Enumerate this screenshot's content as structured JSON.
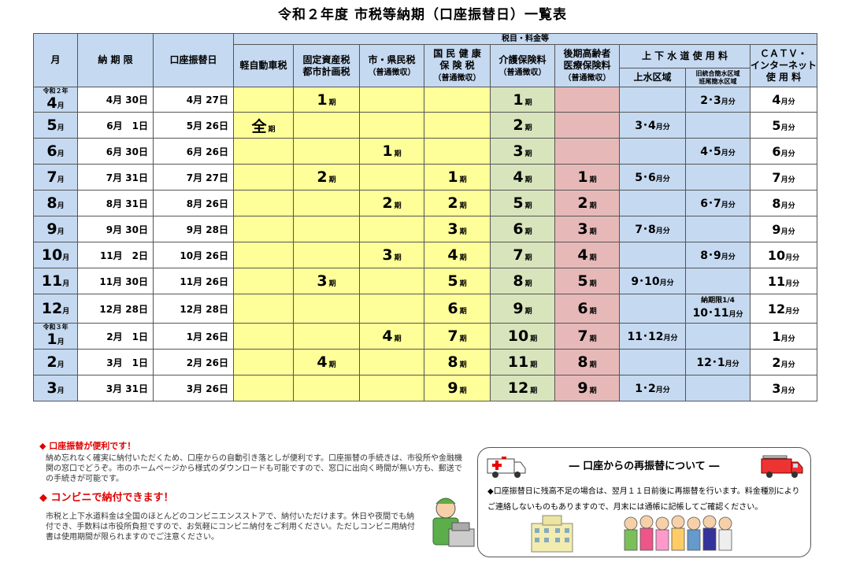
{
  "title": "令和２年度 市税等納期（口座振替日）一覧表",
  "header": {
    "month": "月",
    "due": "納 期 限",
    "transfer": "口座振替日",
    "group": "税目・料金等",
    "kei": "軽自動車税",
    "kotei1": "固定資産税",
    "kotei2": "都市計画税",
    "shiken1": "市・県民税",
    "shiken2": "（普通徴収）",
    "kokuho1": "国 民 健 康",
    "kokuho2": "保 険 税",
    "kokuho3": "（普通徴収）",
    "kaigo1": "介護保険料",
    "kaigo2": "（普通徴収）",
    "koki1": "後期高齢者",
    "koki2": "医療保険料",
    "koki3": "（普通徴収）",
    "water": "上 下 水 道 使 用 料",
    "water_a": "上水区域",
    "water_b1": "旧統合簡水区域",
    "water_b2": "班尾簡水区域",
    "catv1": "ＣＡＴＶ・",
    "catv2": "インターネット",
    "catv3": "使 用 料"
  },
  "month_suffix": "月",
  "ki_suffix": "期",
  "gappun_suffix": "月分",
  "rows": [
    {
      "era": "令和２年",
      "m": "4",
      "due": "4月 30日",
      "tr": "4月 27日",
      "kei": "",
      "kotei": "1",
      "shiken": "",
      "kokuho": "",
      "kaigo": "1",
      "koki": "",
      "wa": "",
      "wb": "2･3",
      "catv": "4"
    },
    {
      "era": "",
      "m": "5",
      "due": "6月　1日",
      "tr": "5月 26日",
      "kei": "全",
      "kotei": "",
      "shiken": "",
      "kokuho": "",
      "kaigo": "2",
      "koki": "",
      "wa": "3･4",
      "wb": "",
      "catv": "5"
    },
    {
      "era": "",
      "m": "6",
      "due": "6月 30日",
      "tr": "6月 26日",
      "kei": "",
      "kotei": "",
      "shiken": "1",
      "kokuho": "",
      "kaigo": "3",
      "koki": "",
      "wa": "",
      "wb": "4･5",
      "catv": "6"
    },
    {
      "era": "",
      "m": "7",
      "due": "7月 31日",
      "tr": "7月 27日",
      "kei": "",
      "kotei": "2",
      "shiken": "",
      "kokuho": "1",
      "kaigo": "4",
      "koki": "1",
      "wa": "5･6",
      "wb": "",
      "catv": "7"
    },
    {
      "era": "",
      "m": "8",
      "due": "8月 31日",
      "tr": "8月 26日",
      "kei": "",
      "kotei": "",
      "shiken": "2",
      "kokuho": "2",
      "kaigo": "5",
      "koki": "2",
      "wa": "",
      "wb": "6･7",
      "catv": "8"
    },
    {
      "era": "",
      "m": "9",
      "due": "9月 30日",
      "tr": "9月 28日",
      "kei": "",
      "kotei": "",
      "shiken": "",
      "kokuho": "3",
      "kaigo": "6",
      "koki": "3",
      "wa": "7･8",
      "wb": "",
      "catv": "9"
    },
    {
      "era": "",
      "m": "10",
      "due": "11月　2日",
      "tr": "10月 26日",
      "kei": "",
      "kotei": "",
      "shiken": "3",
      "kokuho": "4",
      "kaigo": "7",
      "koki": "4",
      "wa": "",
      "wb": "8･9",
      "catv": "10"
    },
    {
      "era": "",
      "m": "11",
      "due": "11月 30日",
      "tr": "11月 26日",
      "kei": "",
      "kotei": "3",
      "shiken": "",
      "kokuho": "5",
      "kaigo": "8",
      "koki": "5",
      "wa": "9･10",
      "wb": "",
      "catv": "11"
    },
    {
      "era": "",
      "m": "12",
      "due": "12月 28日",
      "tr": "12月 28日",
      "kei": "",
      "kotei": "",
      "shiken": "",
      "kokuho": "6",
      "kaigo": "9",
      "koki": "6",
      "wa": "",
      "wb": "10･11",
      "wb_note": "納期限1/4",
      "catv": "12"
    },
    {
      "era": "令和３年",
      "m": "1",
      "due": "2月　1日",
      "tr": "1月 26日",
      "kei": "",
      "kotei": "",
      "shiken": "4",
      "kokuho": "7",
      "kaigo": "10",
      "koki": "7",
      "wa": "11･12",
      "wb": "",
      "catv": "1"
    },
    {
      "era": "",
      "m": "2",
      "due": "3月　1日",
      "tr": "2月 26日",
      "kei": "",
      "kotei": "4",
      "shiken": "",
      "kokuho": "8",
      "kaigo": "11",
      "koki": "8",
      "wa": "",
      "wb": "12･1",
      "catv": "2"
    },
    {
      "era": "",
      "m": "3",
      "due": "3月 31日",
      "tr": "3月 26日",
      "kei": "",
      "kotei": "",
      "shiken": "",
      "kokuho": "9",
      "kaigo": "12",
      "koki": "9",
      "wa": "1･2",
      "wb": "",
      "catv": "3"
    }
  ],
  "notes": {
    "h1": "◆ 口座振替が便利です！",
    "p1": "納め忘れなく確実に納付いただくため、口座からの自動引き落としが便利です。口座振替の手続きは、市役所や金融機関の窓口でどうぞ。市のホームページから様式のダウンロードも可能ですので、窓口に出向く時間が無い方も、郵送での手続きが可能です。",
    "h2": "◆ コンビニで納付できます！",
    "p2": "市税と上下水道料金は全国のほとんどのコンビニエンスストアで、納付いただけます。休日や夜間でも納付でき、手数料は市役所負担ですので、お気軽にコンビニ納付をご利用ください。ただしコンビニ用納付書は使用期間が限られますのでご注意ください。"
  },
  "box": {
    "title": "― 口座からの再振替について ―",
    "body": "◆口座振替日に残高不足の場合は、翌月１１日前後に再振替を行います。料金種別によりご連絡しないものもありますので、月末には通帳に記帳してご確認ください。"
  },
  "colors": {
    "yellow": "#ffff99",
    "green": "#d8e4bc",
    "pink": "#e6b9b8",
    "blue": "#c5d9f1",
    "red": "#e00000"
  }
}
